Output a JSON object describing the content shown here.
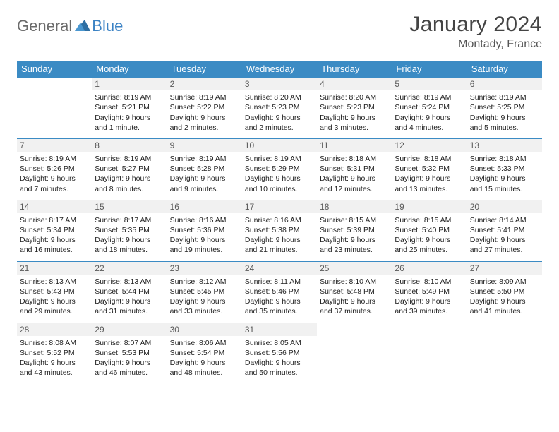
{
  "brand": {
    "part1": "General",
    "part2": "Blue"
  },
  "title": "January 2024",
  "location": "Montady, France",
  "colors": {
    "header_bg": "#3b8bc4",
    "header_text": "#ffffff",
    "rule": "#3b8bc4",
    "daynum_bg": "#f1f1f1",
    "body_text": "#222222",
    "title_text": "#444444",
    "brand_gray": "#6b6b6b",
    "brand_blue": "#3b82c4",
    "background": "#ffffff"
  },
  "weekdays": [
    "Sunday",
    "Monday",
    "Tuesday",
    "Wednesday",
    "Thursday",
    "Friday",
    "Saturday"
  ],
  "weeks": [
    [
      null,
      {
        "n": "1",
        "sunrise": "8:19 AM",
        "sunset": "5:21 PM",
        "day": "9 hours and 1 minute."
      },
      {
        "n": "2",
        "sunrise": "8:19 AM",
        "sunset": "5:22 PM",
        "day": "9 hours and 2 minutes."
      },
      {
        "n": "3",
        "sunrise": "8:20 AM",
        "sunset": "5:23 PM",
        "day": "9 hours and 2 minutes."
      },
      {
        "n": "4",
        "sunrise": "8:20 AM",
        "sunset": "5:23 PM",
        "day": "9 hours and 3 minutes."
      },
      {
        "n": "5",
        "sunrise": "8:19 AM",
        "sunset": "5:24 PM",
        "day": "9 hours and 4 minutes."
      },
      {
        "n": "6",
        "sunrise": "8:19 AM",
        "sunset": "5:25 PM",
        "day": "9 hours and 5 minutes."
      }
    ],
    [
      {
        "n": "7",
        "sunrise": "8:19 AM",
        "sunset": "5:26 PM",
        "day": "9 hours and 7 minutes."
      },
      {
        "n": "8",
        "sunrise": "8:19 AM",
        "sunset": "5:27 PM",
        "day": "9 hours and 8 minutes."
      },
      {
        "n": "9",
        "sunrise": "8:19 AM",
        "sunset": "5:28 PM",
        "day": "9 hours and 9 minutes."
      },
      {
        "n": "10",
        "sunrise": "8:19 AM",
        "sunset": "5:29 PM",
        "day": "9 hours and 10 minutes."
      },
      {
        "n": "11",
        "sunrise": "8:18 AM",
        "sunset": "5:31 PM",
        "day": "9 hours and 12 minutes."
      },
      {
        "n": "12",
        "sunrise": "8:18 AM",
        "sunset": "5:32 PM",
        "day": "9 hours and 13 minutes."
      },
      {
        "n": "13",
        "sunrise": "8:18 AM",
        "sunset": "5:33 PM",
        "day": "9 hours and 15 minutes."
      }
    ],
    [
      {
        "n": "14",
        "sunrise": "8:17 AM",
        "sunset": "5:34 PM",
        "day": "9 hours and 16 minutes."
      },
      {
        "n": "15",
        "sunrise": "8:17 AM",
        "sunset": "5:35 PM",
        "day": "9 hours and 18 minutes."
      },
      {
        "n": "16",
        "sunrise": "8:16 AM",
        "sunset": "5:36 PM",
        "day": "9 hours and 19 minutes."
      },
      {
        "n": "17",
        "sunrise": "8:16 AM",
        "sunset": "5:38 PM",
        "day": "9 hours and 21 minutes."
      },
      {
        "n": "18",
        "sunrise": "8:15 AM",
        "sunset": "5:39 PM",
        "day": "9 hours and 23 minutes."
      },
      {
        "n": "19",
        "sunrise": "8:15 AM",
        "sunset": "5:40 PM",
        "day": "9 hours and 25 minutes."
      },
      {
        "n": "20",
        "sunrise": "8:14 AM",
        "sunset": "5:41 PM",
        "day": "9 hours and 27 minutes."
      }
    ],
    [
      {
        "n": "21",
        "sunrise": "8:13 AM",
        "sunset": "5:43 PM",
        "day": "9 hours and 29 minutes."
      },
      {
        "n": "22",
        "sunrise": "8:13 AM",
        "sunset": "5:44 PM",
        "day": "9 hours and 31 minutes."
      },
      {
        "n": "23",
        "sunrise": "8:12 AM",
        "sunset": "5:45 PM",
        "day": "9 hours and 33 minutes."
      },
      {
        "n": "24",
        "sunrise": "8:11 AM",
        "sunset": "5:46 PM",
        "day": "9 hours and 35 minutes."
      },
      {
        "n": "25",
        "sunrise": "8:10 AM",
        "sunset": "5:48 PM",
        "day": "9 hours and 37 minutes."
      },
      {
        "n": "26",
        "sunrise": "8:10 AM",
        "sunset": "5:49 PM",
        "day": "9 hours and 39 minutes."
      },
      {
        "n": "27",
        "sunrise": "8:09 AM",
        "sunset": "5:50 PM",
        "day": "9 hours and 41 minutes."
      }
    ],
    [
      {
        "n": "28",
        "sunrise": "8:08 AM",
        "sunset": "5:52 PM",
        "day": "9 hours and 43 minutes."
      },
      {
        "n": "29",
        "sunrise": "8:07 AM",
        "sunset": "5:53 PM",
        "day": "9 hours and 46 minutes."
      },
      {
        "n": "30",
        "sunrise": "8:06 AM",
        "sunset": "5:54 PM",
        "day": "9 hours and 48 minutes."
      },
      {
        "n": "31",
        "sunrise": "8:05 AM",
        "sunset": "5:56 PM",
        "day": "9 hours and 50 minutes."
      },
      null,
      null,
      null
    ]
  ],
  "labels": {
    "sunrise": "Sunrise:",
    "sunset": "Sunset:",
    "daylight": "Daylight:"
  }
}
